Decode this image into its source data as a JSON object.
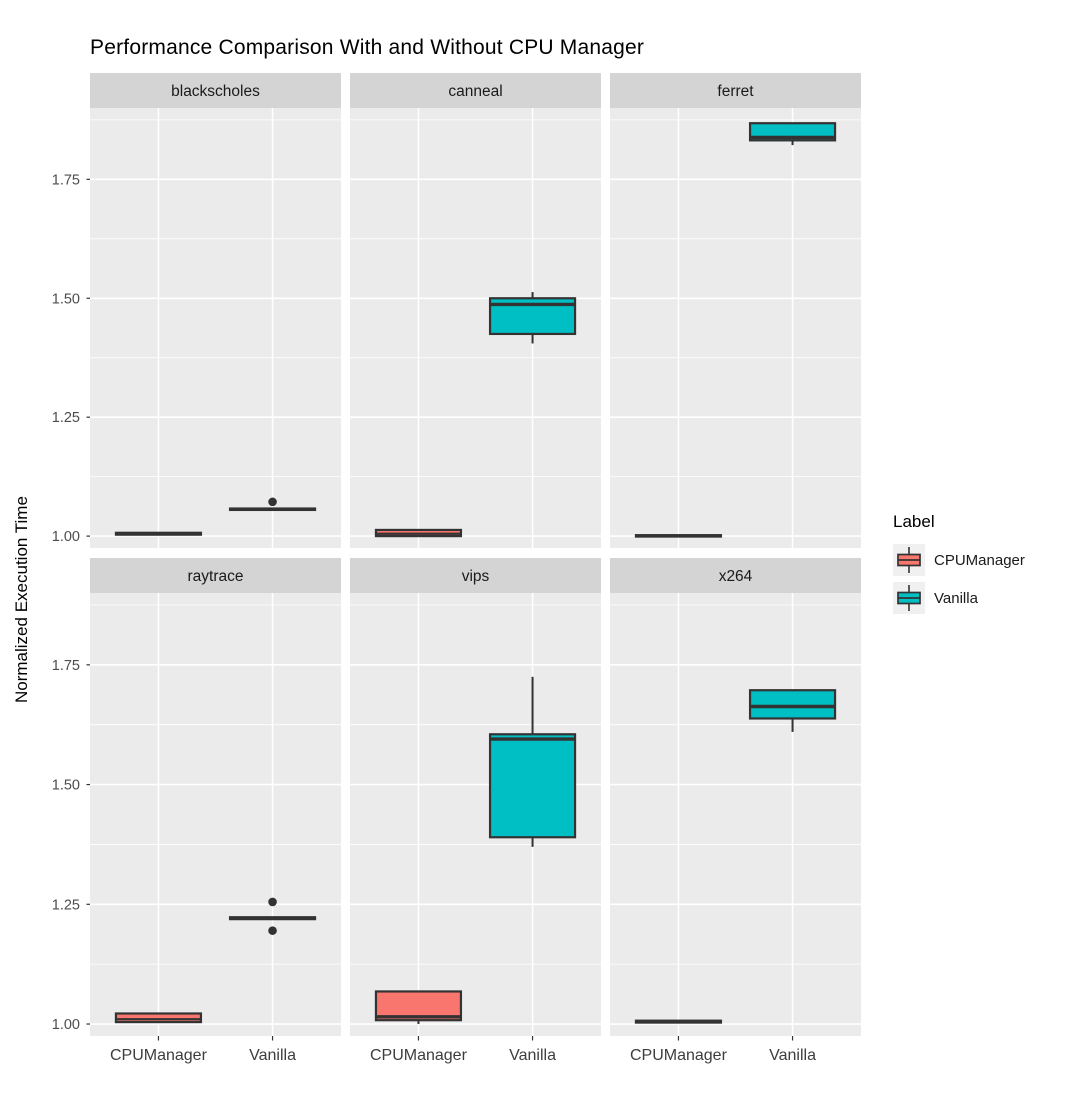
{
  "title": "Performance Comparison With and Without CPU Manager",
  "y_axis": {
    "title": "Normalized Execution Time",
    "ticks": [
      "1.00",
      "1.25",
      "1.50",
      "1.75"
    ],
    "tick_values": [
      1.0,
      1.25,
      1.5,
      1.75
    ]
  },
  "x_axis": {
    "categories": [
      "CPUManager",
      "Vanilla"
    ]
  },
  "legend": {
    "title": "Label",
    "entries": [
      {
        "label": "CPUManager",
        "color": "#F8766D"
      },
      {
        "label": "Vanilla",
        "color": "#00BFC4"
      }
    ]
  },
  "colors": {
    "cpumanager": "#F8766D",
    "vanilla": "#00BFC4",
    "panel_bg": "#EBEBEB",
    "strip_bg": "#D4D4D4",
    "grid": "#FFFFFF",
    "box_stroke": "#333333",
    "outlier": "#333333",
    "y_tick_label": "#4D4D4D",
    "x_tick_label": "#3D3D3D",
    "strip_text": "#1A1A1A"
  },
  "chart_data": {
    "type": "boxplot",
    "facet_layout": [
      "blackscholes",
      "canneal",
      "ferret",
      "raytrace",
      "vips",
      "x264"
    ],
    "ylim": [
      0.975,
      1.9
    ],
    "y_major": [
      1.0,
      1.25,
      1.5,
      1.75
    ],
    "y_minor": [
      1.125,
      1.375,
      1.625,
      1.875
    ],
    "ylabel": "Normalized Execution Time",
    "grid": "on",
    "legend_position": "right",
    "facets": [
      {
        "name": "blackscholes",
        "boxes": [
          {
            "group": "CPUManager",
            "min": 1.002,
            "q1": 1.003,
            "median": 1.005,
            "q3": 1.007,
            "max": 1.008,
            "outliers": []
          },
          {
            "group": "Vanilla",
            "min": 1.053,
            "q1": 1.055,
            "median": 1.057,
            "q3": 1.058,
            "max": 1.06,
            "outliers": [
              1.072
            ]
          }
        ]
      },
      {
        "name": "canneal",
        "boxes": [
          {
            "group": "CPUManager",
            "min": 1.0,
            "q1": 1.0,
            "median": 1.005,
            "q3": 1.013,
            "max": 1.015,
            "outliers": []
          },
          {
            "group": "Vanilla",
            "min": 1.405,
            "q1": 1.425,
            "median": 1.487,
            "q3": 1.5,
            "max": 1.513,
            "outliers": []
          }
        ]
      },
      {
        "name": "ferret",
        "boxes": [
          {
            "group": "CPUManager",
            "min": 0.999,
            "q1": 1.0,
            "median": 1.001,
            "q3": 1.002,
            "max": 1.003,
            "outliers": []
          },
          {
            "group": "Vanilla",
            "min": 1.822,
            "q1": 1.832,
            "median": 1.838,
            "q3": 1.868,
            "max": 1.868,
            "outliers": []
          }
        ]
      },
      {
        "name": "raytrace",
        "boxes": [
          {
            "group": "CPUManager",
            "min": 1.0,
            "q1": 1.004,
            "median": 1.01,
            "q3": 1.022,
            "max": 1.025,
            "outliers": []
          },
          {
            "group": "Vanilla",
            "min": 1.218,
            "q1": 1.219,
            "median": 1.221,
            "q3": 1.223,
            "max": 1.224,
            "outliers": [
              1.255,
              1.195
            ]
          }
        ]
      },
      {
        "name": "vips",
        "boxes": [
          {
            "group": "CPUManager",
            "min": 1.0,
            "q1": 1.008,
            "median": 1.015,
            "q3": 1.068,
            "max": 1.07,
            "outliers": []
          },
          {
            "group": "Vanilla",
            "min": 1.37,
            "q1": 1.39,
            "median": 1.595,
            "q3": 1.605,
            "max": 1.725,
            "outliers": []
          }
        ]
      },
      {
        "name": "x264",
        "boxes": [
          {
            "group": "CPUManager",
            "min": 1.002,
            "q1": 1.003,
            "median": 1.005,
            "q3": 1.007,
            "max": 1.008,
            "outliers": []
          },
          {
            "group": "Vanilla",
            "min": 1.61,
            "q1": 1.638,
            "median": 1.663,
            "q3": 1.697,
            "max": 1.697,
            "outliers": []
          }
        ]
      }
    ]
  }
}
